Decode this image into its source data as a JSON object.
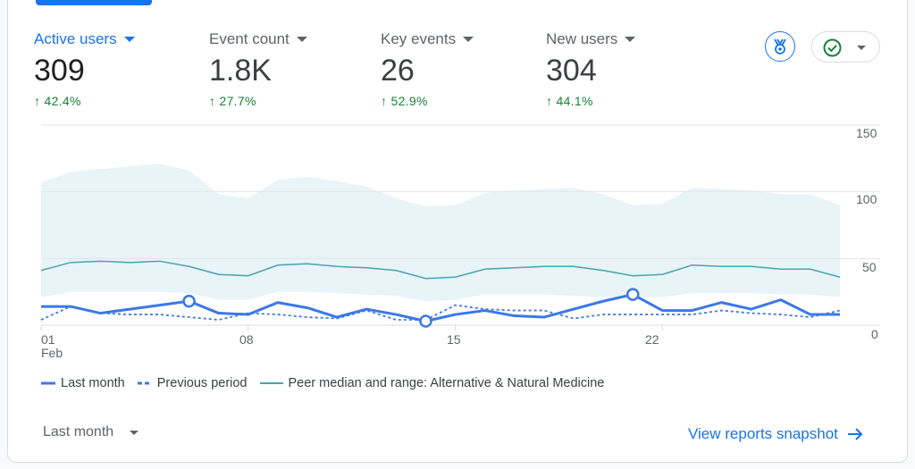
{
  "metrics": [
    {
      "label": "Active users",
      "value": "309",
      "change": "42.4%",
      "active": true
    },
    {
      "label": "Event count",
      "value": "1.8K",
      "change": "27.7%"
    },
    {
      "label": "Key events",
      "value": "26",
      "change": "52.9%"
    },
    {
      "label": "New users",
      "value": "304",
      "change": "44.1%"
    }
  ],
  "icons": {
    "insights": "medal-icon",
    "status": "check-circle-icon",
    "up": "arrow-up-icon"
  },
  "chart_data": {
    "type": "line",
    "x_ticks": [
      "01",
      "08",
      "15",
      "22"
    ],
    "x_month": "Feb",
    "y_ticks": [
      "0",
      "50",
      "100",
      "150"
    ],
    "ylim": [
      0,
      150
    ],
    "x": [
      1,
      2,
      3,
      4,
      5,
      6,
      7,
      8,
      9,
      10,
      11,
      12,
      13,
      14,
      15,
      16,
      17,
      18,
      19,
      20,
      21,
      22,
      23,
      24,
      25,
      26,
      27,
      28
    ],
    "series": [
      {
        "name": "Last month",
        "style": "solid",
        "color": "#3b78e7",
        "values": [
          14,
          14,
          9,
          12,
          15,
          18,
          9,
          8,
          17,
          13,
          6,
          12,
          8,
          3,
          8,
          11,
          7,
          6,
          12,
          18,
          23,
          11,
          11,
          17,
          12,
          19,
          8,
          8
        ],
        "markers_at": [
          6,
          14,
          21
        ]
      },
      {
        "name": "Previous period",
        "style": "dashed",
        "color": "#3b78e7",
        "values": [
          4,
          14,
          9,
          8,
          8,
          6,
          4,
          9,
          8,
          6,
          5,
          11,
          4,
          4,
          15,
          12,
          11,
          11,
          5,
          8,
          8,
          8,
          8,
          11,
          9,
          8,
          6,
          11
        ]
      },
      {
        "name": "Peer median and range: Alternative & Natural Medicine",
        "style": "band",
        "color": "#4aa3b0",
        "band_color": "#e8f4f7",
        "values": [
          41,
          47,
          48,
          47,
          48,
          44,
          38,
          37,
          45,
          46,
          44,
          43,
          41,
          35,
          36,
          42,
          43,
          44,
          44,
          41,
          37,
          38,
          45,
          44,
          44,
          42,
          42,
          36
        ],
        "upper": [
          107,
          115,
          117,
          119,
          121,
          116,
          98,
          95,
          109,
          111,
          108,
          104,
          95,
          89,
          90,
          99,
          101,
          102,
          103,
          98,
          90,
          91,
          103,
          102,
          101,
          98,
          98,
          90
        ],
        "lower": [
          21,
          25,
          25,
          25,
          25,
          24,
          19,
          19,
          25,
          25,
          24,
          23,
          22,
          18,
          19,
          23,
          23,
          23,
          22,
          21,
          21,
          21,
          24,
          24,
          24,
          23,
          23,
          21
        ]
      }
    ],
    "grid": true
  },
  "footer": {
    "date_range": "Last month",
    "link": "View reports snapshot"
  }
}
